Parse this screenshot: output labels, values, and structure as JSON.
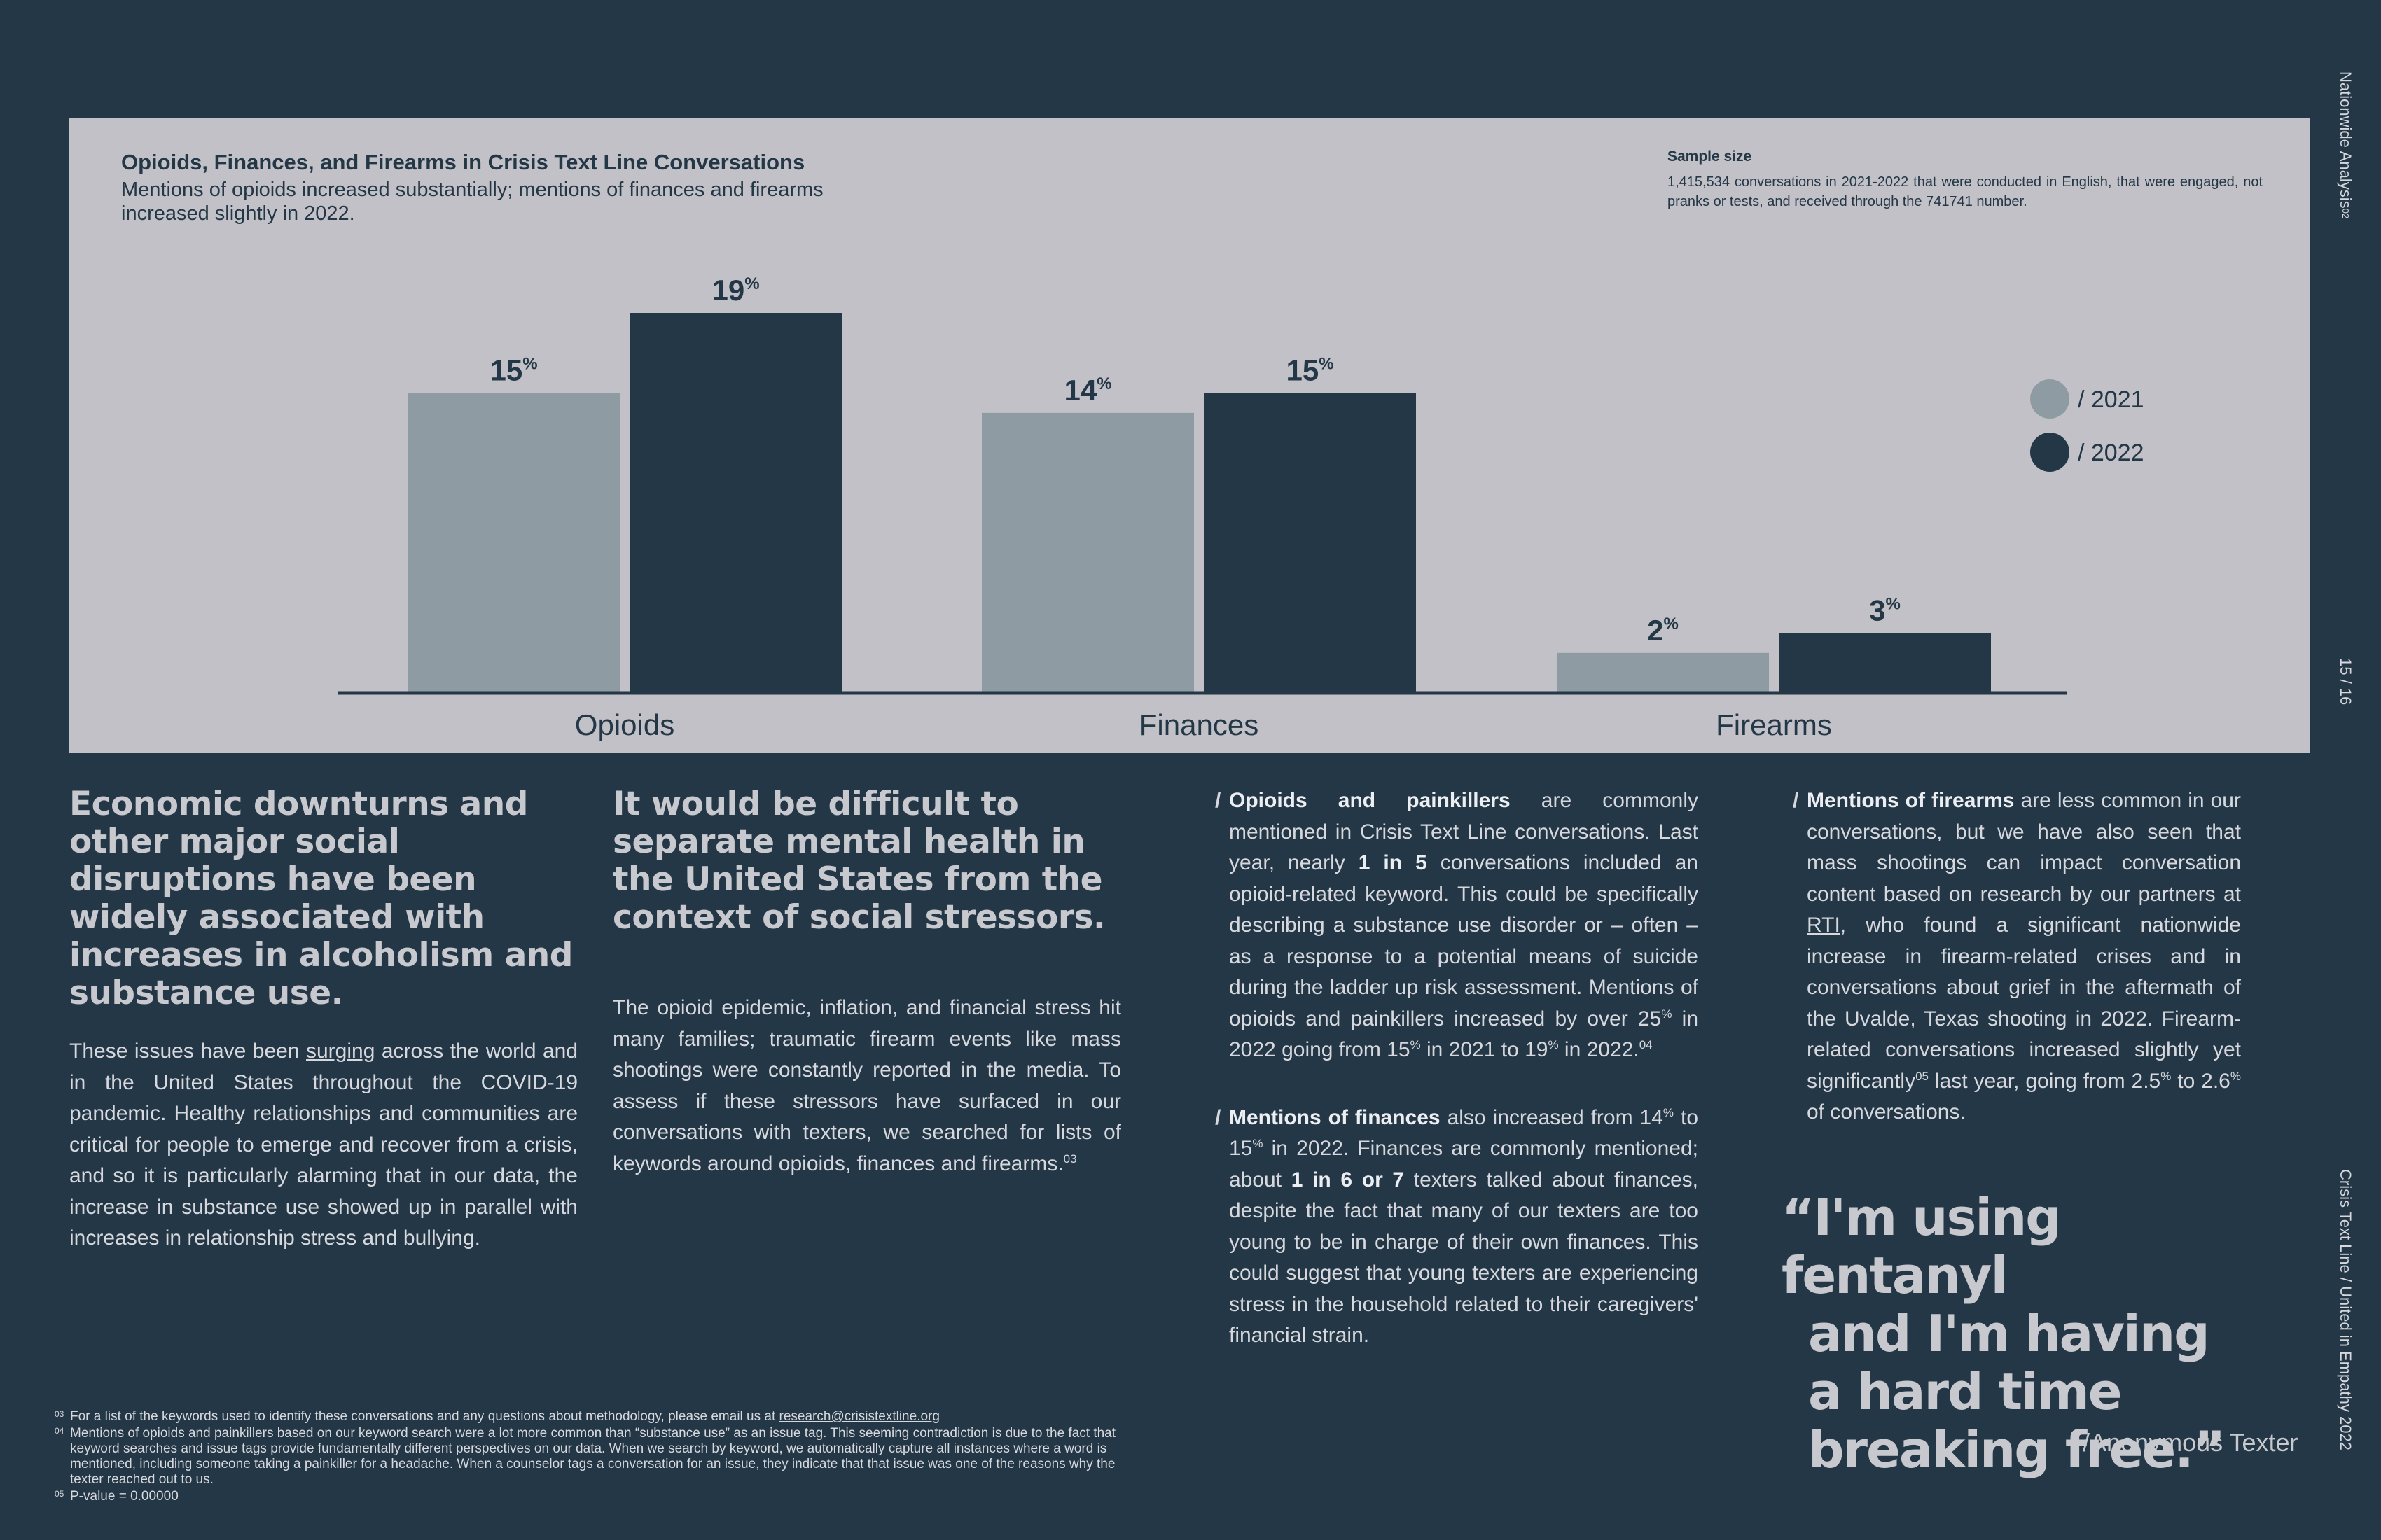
{
  "side": {
    "top": "Nationwide Analysis",
    "top_sup": "02",
    "page": "15 / 16",
    "bottom": "Crisis Text Line  /  United in Empathy 2022"
  },
  "chart_panel": {
    "sample_size_heading": "Sample size",
    "sample_size_text": "1,415,534 conversations in 2021-2022 that were conducted in English, that were engaged, not pranks or tests, and received through the 741741 number."
  },
  "chart_data": {
    "type": "bar",
    "title": "Opioids, Finances, and Firearms in Crisis Text Line Conversations",
    "subtitle": "Mentions of opioids increased substantially; mentions of finances and firearms increased slightly in 2022.",
    "categories": [
      "Opioids",
      "Finances",
      "Firearms"
    ],
    "series": [
      {
        "name": "/ 2021",
        "values": [
          15,
          14,
          2
        ],
        "color": "#8f9ba3"
      },
      {
        "name": "/ 2022",
        "values": [
          19,
          15,
          3
        ],
        "color": "#243746"
      }
    ],
    "value_suffix": "%",
    "ylim": [
      0,
      19
    ],
    "grid": false,
    "legend_position": "right"
  },
  "col1": {
    "headline": "Economic downturns and other major social disruptions have been widely associated with increases in alcoholism and substance use.",
    "body_before": "These issues have been ",
    "body_link": "surging",
    "body_after": " across the world and in the United States throughout the COVID-19 pandemic. Healthy relationships and communities are critical for people to emerge and recover from a crisis, and so it is particularly alarming that in our data, the increase in substance use showed up in parallel with increases in relationship stress and bullying."
  },
  "col2": {
    "headline": "It would be difficult to separate mental health in the United States from the context of social stressors.",
    "body": "The opioid epidemic, inflation, and financial stress hit many families; traumatic firearm events like mass shootings were constantly reported in the media. To assess if these stressors have surfaced in our conversations with texters, we searched for lists of keywords around opioids, finances and firearms.",
    "body_sup": "03"
  },
  "col3": {
    "p1_lead": "Opioids and painkillers",
    "p1_a": " are commonly mentioned in Crisis Text Line conversations. Last year, nearly ",
    "p1_strong": "1 in 5",
    "p1_b": " conversations included an opioid-related keyword. This could be specifically describing a substance use disorder or – often – as a response to a potential means of suicide during the ladder up risk assessment. Mentions of opioids and painkillers increased by over 25",
    "p1_c": " in 2022 going from 15",
    "p1_d": " in 2021 to 19",
    "p1_e": " in 2022.",
    "p1_fn": "04",
    "pct": "%",
    "p2_lead": "Mentions of finances",
    "p2_a": " also increased from 14",
    "p2_b": " to 15",
    "p2_c": " in 2022. Finances are commonly mentioned; about ",
    "p2_strong": "1 in 6 or 7",
    "p2_d": " texters talked about finances, despite the fact that many of our texters are too young to be in charge of their own finances. This could suggest that young texters are experiencing stress in the household related to their caregivers' financial strain."
  },
  "col4": {
    "p_lead": "Mentions of firearms",
    "p_a": " are less common in our conversations, but we have also seen that mass shootings can impact conversation content based on research by our partners at ",
    "p_link": "RTI",
    "p_b": ", who found a significant nationwide increase in firearm-related crises and in conversations about grief in the aftermath of the Uvalde, Texas shooting in 2022. Firearm-related conversations increased slightly yet significantly",
    "p_fn": "05",
    "p_c": " last year, going from 2.5",
    "p_d": " to 2.6",
    "p_e": " of conversations.",
    "pct": "%"
  },
  "quote": {
    "line1": "“I'm using fentanyl",
    "line2": "and I'm having",
    "line3": "a hard time",
    "line4": "breaking free.”",
    "attribution": "/Anonymous Texter"
  },
  "footnotes": {
    "fn03_num": "03",
    "fn03_text": "For a list of the keywords used to identify these conversations and any questions about methodology, please email us at ",
    "fn03_link": "research@crisistextline.org",
    "fn04_num": "04",
    "fn04_text": "Mentions of opioids and painkillers based on our keyword search were a lot more common than “substance use” as an issue tag. This seeming contradiction is due to the fact that keyword searches and issue tags provide fundamentally different perspectives on our data. When we search by keyword, we automatically capture all instances where a word is mentioned, including someone taking a painkiller for a headache. When a counselor tags a conversation for an issue, they indicate that that issue was one of the reasons why the texter reached out to us.",
    "fn05_num": "05",
    "fn05_text": "P-value = 0.00000"
  }
}
